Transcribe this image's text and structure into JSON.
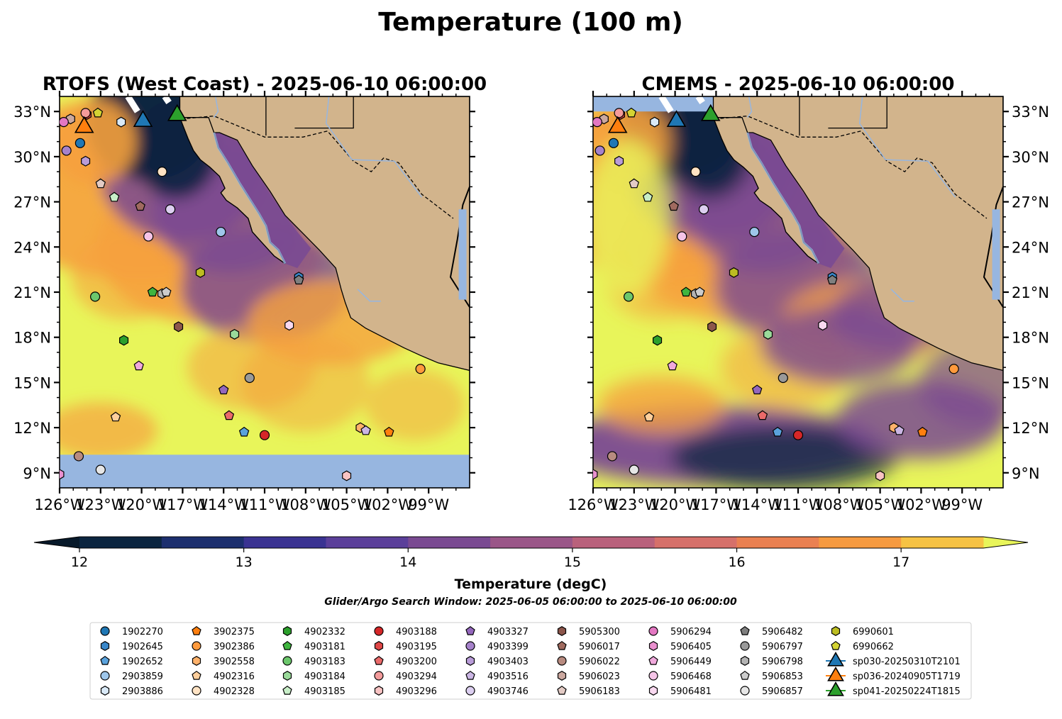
{
  "figure": {
    "suptitle": "Temperature (100 m)",
    "left_title": "RTOFS (West Coast) - 2025-06-10 06:00:00",
    "right_title": "CMEMS - 2025-06-10 06:00:00",
    "colorbar_label": "Temperature (degC)",
    "window_text": "Glider/Argo Search Window: 2025-06-05 06:00:00 to 2025-06-10 06:00:00"
  },
  "chart_data": [
    {
      "type": "heatmap",
      "panel": "left",
      "title": "RTOFS (West Coast) - 2025-06-10 06:00:00",
      "xlim": [
        -126,
        -96
      ],
      "ylim": [
        8,
        34
      ],
      "xticks": [
        "126°W",
        "123°W",
        "120°W",
        "117°W",
        "114°W",
        "111°W",
        "108°W",
        "105°W",
        "102°W",
        "99°W"
      ],
      "yticks": [
        "9°N",
        "12°N",
        "15°N",
        "18°N",
        "21°N",
        "24°N",
        "27°N",
        "30°N",
        "33°N"
      ]
    },
    {
      "type": "heatmap",
      "panel": "right",
      "title": "CMEMS - 2025-06-10 06:00:00",
      "xlim": [
        -126,
        -96
      ],
      "ylim": [
        8,
        34
      ],
      "xticks": [
        "126°W",
        "123°W",
        "120°W",
        "117°W",
        "114°W",
        "111°W",
        "108°W",
        "105°W",
        "102°W",
        "99°W"
      ],
      "yticks": [
        "9°N",
        "12°N",
        "15°N",
        "18°N",
        "21°N",
        "24°N",
        "27°N",
        "30°N",
        "33°N"
      ]
    }
  ],
  "colorbar": {
    "min": 12,
    "max": 17.5,
    "step": 0.5,
    "extend": "both",
    "ticks": [
      "12",
      "13",
      "14",
      "15",
      "16",
      "17"
    ],
    "tick_values": [
      12,
      13,
      14,
      15,
      16,
      17
    ],
    "colors": [
      "#0b2540",
      "#1c2f6e",
      "#3a3392",
      "#5b3f9a",
      "#7a4a92",
      "#9a5688",
      "#b9617c",
      "#d6706a",
      "#ea8051",
      "#f69a40",
      "#f6c244"
    ],
    "under_color": "#07192a",
    "over_color": "#e8f55a"
  },
  "colors": {
    "land": "#d2b48c",
    "ocean_nodata": "#97b6e0",
    "warm": "#e8f55a",
    "mid": "#f6a13e",
    "cool": "#7a4a92",
    "cold": "#0b2540"
  },
  "floats": [
    {
      "id": "1902270",
      "lon": -124.5,
      "lat": 30.9,
      "color": "#1f77b4",
      "marker": "circle"
    },
    {
      "id": "1902645",
      "lon": -108.5,
      "lat": 22.0,
      "color": "#3a87c9",
      "marker": "hexagon"
    },
    {
      "id": "1902652",
      "lon": -112.5,
      "lat": 11.7,
      "color": "#5aa2dc",
      "marker": "pentagon"
    },
    {
      "id": "2903859",
      "lon": -114.2,
      "lat": 25.0,
      "color": "#9ec6ea",
      "marker": "circle"
    },
    {
      "id": "2903886",
      "lon": -121.5,
      "lat": 32.3,
      "color": "#d9e9f7",
      "marker": "hexagon"
    },
    {
      "id": "3902375",
      "lon": -101.9,
      "lat": 11.7,
      "color": "#ff7f0e",
      "marker": "pentagon"
    },
    {
      "id": "3902386",
      "lon": -99.6,
      "lat": 15.9,
      "color": "#ff9a3d",
      "marker": "circle"
    },
    {
      "id": "3902558",
      "lon": -104.0,
      "lat": 12.0,
      "color": "#ffb26b",
      "marker": "hexagon"
    },
    {
      "id": "4902316",
      "lon": -121.9,
      "lat": 12.7,
      "color": "#ffcf9c",
      "marker": "pentagon"
    },
    {
      "id": "4902328",
      "lon": -118.5,
      "lat": 29.0,
      "color": "#ffe3c4",
      "marker": "circle"
    },
    {
      "id": "4902332",
      "lon": -121.3,
      "lat": 17.8,
      "color": "#2ca02c",
      "marker": "hexagon"
    },
    {
      "id": "4903181",
      "lon": -119.2,
      "lat": 21.0,
      "color": "#3fb53f",
      "marker": "pentagon"
    },
    {
      "id": "4903183",
      "lon": -123.4,
      "lat": 20.7,
      "color": "#6cc76c",
      "marker": "circle"
    },
    {
      "id": "4903184",
      "lon": -113.2,
      "lat": 18.2,
      "color": "#9ada9a",
      "marker": "hexagon"
    },
    {
      "id": "4903185",
      "lon": -122.0,
      "lat": 27.3,
      "color": "#c8eec8",
      "marker": "pentagon"
    },
    {
      "id": "4903188",
      "lon": -111.0,
      "lat": 11.5,
      "color": "#d62728",
      "marker": "circle"
    },
    {
      "id": "4903195",
      "lon": -124.0,
      "lat": 32.8,
      "color": "#e04848",
      "marker": "hexagon"
    },
    {
      "id": "4903200",
      "lon": -113.6,
      "lat": 12.8,
      "color": "#ea6a6a",
      "marker": "pentagon"
    },
    {
      "id": "4903294",
      "lon": -124.1,
      "lat": 32.9,
      "color": "#f39b9b",
      "marker": "circle"
    },
    {
      "id": "4903296",
      "lon": -105.0,
      "lat": 8.8,
      "color": "#f8c3c3",
      "marker": "hexagon"
    },
    {
      "id": "4903327",
      "lon": -114.0,
      "lat": 14.5,
      "color": "#9467bd",
      "marker": "pentagon"
    },
    {
      "id": "4903399",
      "lon": -125.5,
      "lat": 30.4,
      "color": "#a682cb",
      "marker": "circle"
    },
    {
      "id": "4903403",
      "lon": -124.1,
      "lat": 29.7,
      "color": "#b99cd8",
      "marker": "hexagon"
    },
    {
      "id": "4903516",
      "lon": -103.6,
      "lat": 11.8,
      "color": "#cbb6e4",
      "marker": "pentagon"
    },
    {
      "id": "4903746",
      "lon": -117.9,
      "lat": 26.5,
      "color": "#dccff0",
      "marker": "circle"
    },
    {
      "id": "5905300",
      "lon": -117.3,
      "lat": 18.7,
      "color": "#8c564b",
      "marker": "hexagon"
    },
    {
      "id": "5906017",
      "lon": -120.1,
      "lat": 26.7,
      "color": "#a06a5f",
      "marker": "pentagon"
    },
    {
      "id": "5906022",
      "lon": -124.6,
      "lat": 10.1,
      "color": "#b88b80",
      "marker": "circle"
    },
    {
      "id": "5906023",
      "lon": -125.2,
      "lat": 32.5,
      "color": "#cba89f",
      "marker": "hexagon"
    },
    {
      "id": "5906183",
      "lon": -123.0,
      "lat": 28.2,
      "color": "#e3cbc5",
      "marker": "pentagon"
    },
    {
      "id": "5906294",
      "lon": -125.7,
      "lat": 32.3,
      "color": "#e377c2",
      "marker": "circle"
    },
    {
      "id": "5906405",
      "lon": -126.0,
      "lat": 8.9,
      "color": "#ea90cf",
      "marker": "hexagon"
    },
    {
      "id": "5906449",
      "lon": -120.2,
      "lat": 16.1,
      "color": "#f0a9dc",
      "marker": "pentagon"
    },
    {
      "id": "5906468",
      "lon": -119.5,
      "lat": 24.7,
      "color": "#f5c4e7",
      "marker": "circle"
    },
    {
      "id": "5906481",
      "lon": -109.2,
      "lat": 18.8,
      "color": "#f9d9f0",
      "marker": "hexagon"
    },
    {
      "id": "5906482",
      "lon": -108.5,
      "lat": 21.8,
      "color": "#7f7f7f",
      "marker": "pentagon"
    },
    {
      "id": "5906797",
      "lon": -112.1,
      "lat": 15.3,
      "color": "#999999",
      "marker": "circle"
    },
    {
      "id": "5906798",
      "lon": -118.5,
      "lat": 20.9,
      "color": "#b3b3b3",
      "marker": "hexagon"
    },
    {
      "id": "5906853",
      "lon": -118.2,
      "lat": 21.0,
      "color": "#cccccc",
      "marker": "pentagon"
    },
    {
      "id": "5906857",
      "lon": -123.0,
      "lat": 9.2,
      "color": "#e6e6e6",
      "marker": "circle"
    },
    {
      "id": "6990601",
      "lon": -115.7,
      "lat": 22.3,
      "color": "#bcbd22",
      "marker": "hexagon"
    },
    {
      "id": "6990662",
      "lon": -123.2,
      "lat": 32.9,
      "color": "#d4d433",
      "marker": "pentagon"
    }
  ],
  "gliders": [
    {
      "id": "sp030-20250310T2101",
      "lon": -119.9,
      "lat": 32.5,
      "color": "#1f77b4"
    },
    {
      "id": "sp036-20240905T1719",
      "lon": -124.2,
      "lat": 32.1,
      "color": "#ff7f0e"
    },
    {
      "id": "sp041-20250224T1815",
      "lon": -117.4,
      "lat": 32.9,
      "color": "#2ca02c"
    }
  ]
}
